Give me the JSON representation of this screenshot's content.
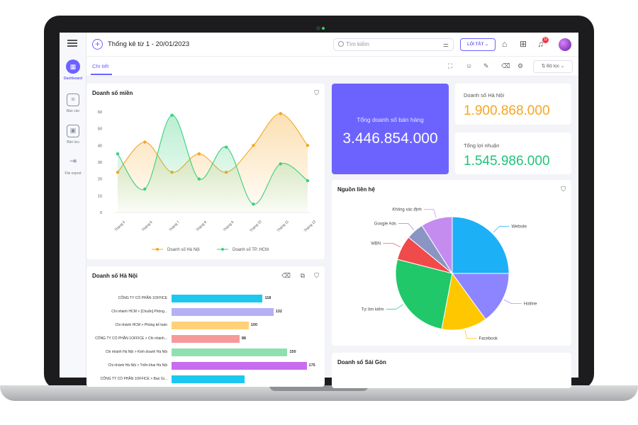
{
  "header": {
    "title": "Thống kê từ 1 - 20/01/2023",
    "search_placeholder": "Tìm kiếm",
    "shortcut_label": "LỐI TẮT",
    "notification_count": "12"
  },
  "sidebar": {
    "items": [
      {
        "label": "Dashboard",
        "icon": "dashboard-icon",
        "active": true
      },
      {
        "label": "Báo cáo",
        "icon": "report-icon",
        "active": false
      },
      {
        "label": "Bản lưu",
        "icon": "save-icon",
        "active": false
      },
      {
        "label": "File export",
        "icon": "export-icon",
        "active": false
      }
    ]
  },
  "tabs": {
    "active_label": "Chi tiết",
    "sort_label": "Bộ lọc"
  },
  "colors": {
    "accent": "#6c63ff",
    "orange": "#f5a623",
    "green": "#1fc37a"
  },
  "kpis": {
    "total_sales_label": "Tổng doanh số bán hàng",
    "total_sales_value": "3.446.854.000",
    "hanoi_sales_label": "Doanh số Hà Nội",
    "hanoi_sales_value": "1.900.868.000",
    "profit_label": "Tổng lợi nhuận",
    "profit_value": "1.545.986.000"
  },
  "cards": {
    "region_sales_title": "Doanh số miền",
    "hanoi_sales_title": "Doanh số Hà Nội",
    "contact_source_title": "Nguồn liên hệ",
    "saigon_sales_title": "Doanh số Sài Gòn"
  },
  "chart_data": [
    {
      "type": "line",
      "title": "Doanh số miền",
      "categories": [
        "Tháng 5",
        "Tháng 6",
        "Tháng 7",
        "Tháng 8",
        "Tháng 9",
        "Tháng 10",
        "Tháng 11",
        "Tháng 12"
      ],
      "series": [
        {
          "name": "Doanh số Hà Nội",
          "values": [
            24,
            42,
            24,
            35,
            24,
            40,
            59,
            40
          ],
          "color": "#f5a623"
        },
        {
          "name": "Doanh số TP. HCM",
          "values": [
            35,
            14,
            58,
            20,
            39,
            5,
            29,
            19
          ],
          "color": "#3ccf7e"
        }
      ],
      "ylim": [
        0,
        60
      ],
      "yticks": [
        "0",
        "10",
        "20",
        "30",
        "40",
        "50",
        "60"
      ],
      "legend": "bottom",
      "grid": false
    },
    {
      "type": "bar",
      "orientation": "horizontal",
      "title": "Doanh số Hà Nội",
      "categories": [
        "CÔNG TY CỔ PHẦN 1OFFICE",
        "Chi nhánh HCM > [Chuẩn] Phòng...",
        "Chi nhánh HCM > Phòng kế toán",
        "CÔNG TY CỔ PHẦN 1OFFICE > Chi nhánh...",
        "Chi nhánh Hà Nội > Kinh doanh Hà Nội",
        "Chi nhánh Hà Nội > Triển khai Hà Nội",
        "CÔNG TY CỔ PHẦN 1OFFICE > Ban Gi..."
      ],
      "values": [
        118,
        132,
        100,
        88,
        150,
        175,
        95
      ],
      "value_labels": [
        "118",
        "132",
        "100",
        "88",
        "150",
        "175",
        ""
      ],
      "colors": [
        "#1cc8f0",
        "#b4b0f5",
        "#ffd27a",
        "#f59a9a",
        "#8fe0b0",
        "#c86cf0",
        "#1cc8f0"
      ],
      "xlim": [
        0,
        180
      ]
    },
    {
      "type": "pie",
      "title": "Nguồn liên hệ",
      "labels": [
        "Website",
        "Hotline",
        "Facebook",
        "Tự tìm kiếm",
        "WBN",
        "Google Ads",
        "Không xác định"
      ],
      "values": [
        25,
        15,
        13,
        26,
        7,
        5,
        9
      ],
      "colors": [
        "#1cb0f6",
        "#8c85ff",
        "#ffc700",
        "#20c86a",
        "#f04a4a",
        "#8a95c4",
        "#c58cf0"
      ]
    }
  ]
}
